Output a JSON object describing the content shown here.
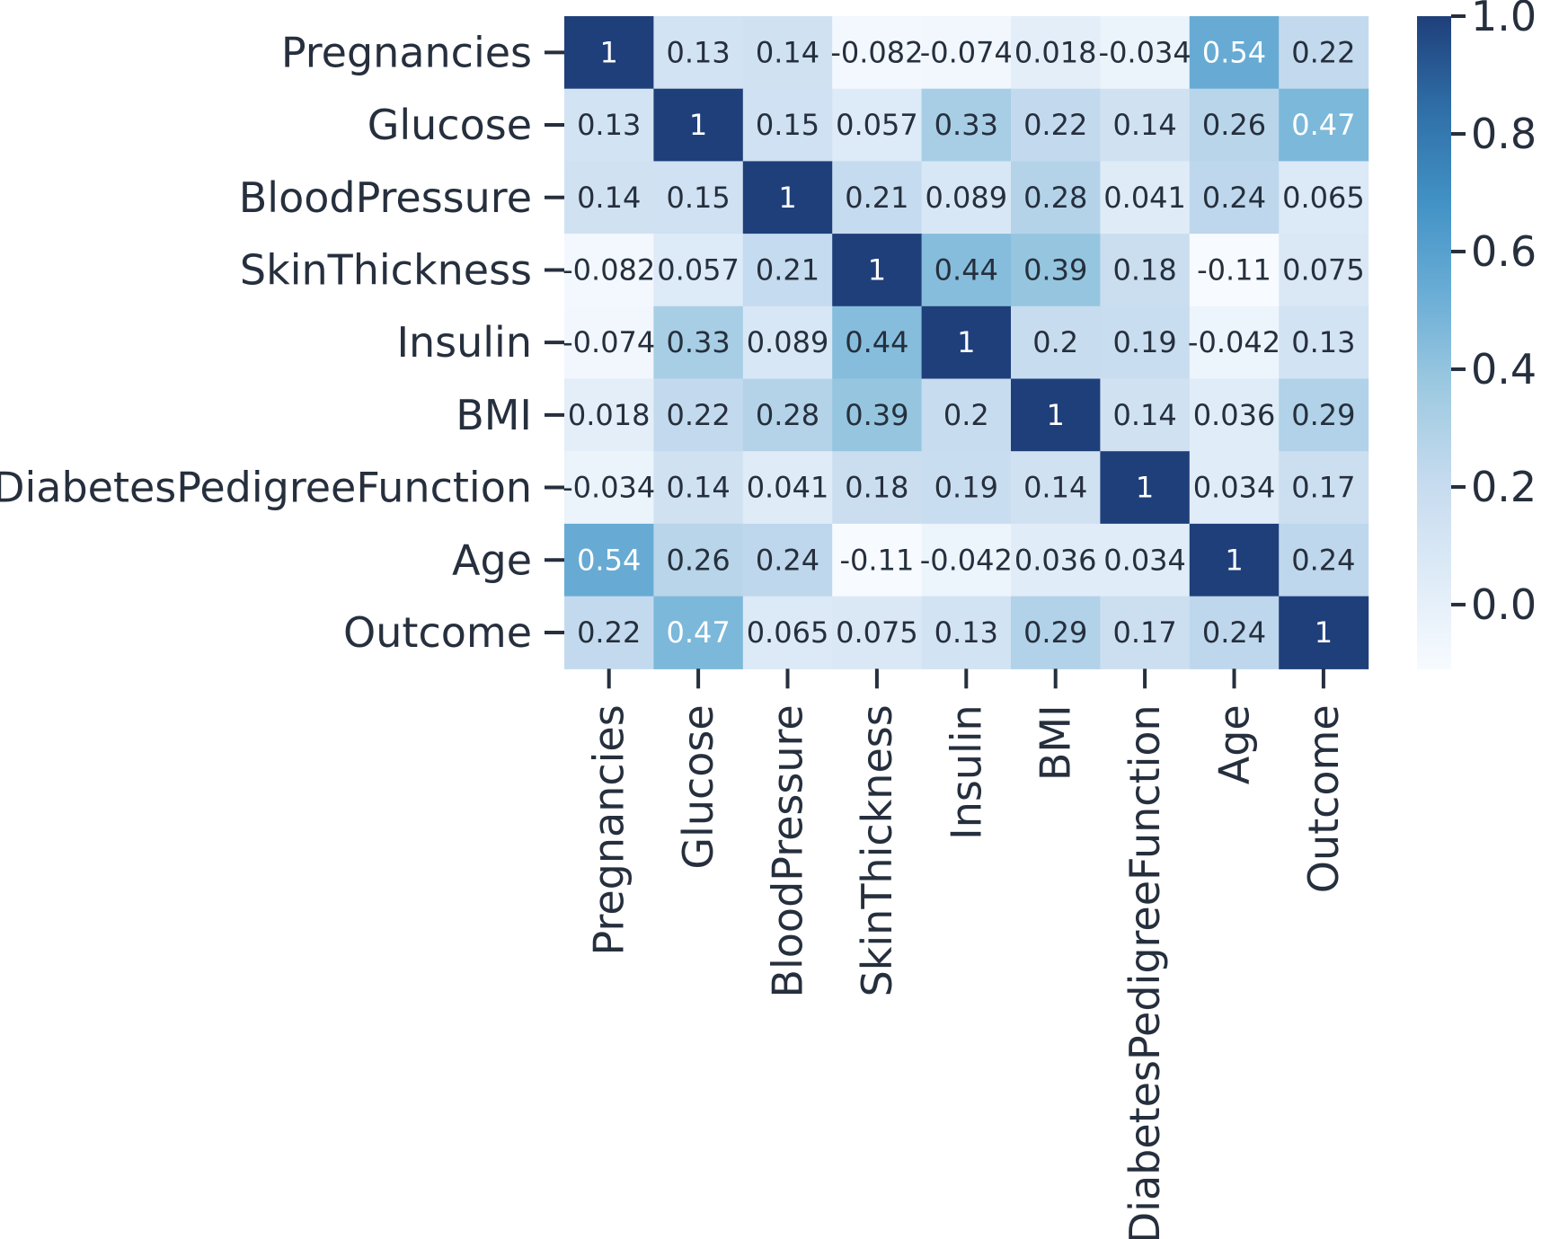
{
  "chart_data": {
    "type": "heatmap",
    "title": "",
    "xlabel": "",
    "ylabel": "",
    "rows": [
      "Pregnancies",
      "Glucose",
      "BloodPressure",
      "SkinThickness",
      "Insulin",
      "BMI",
      "DiabetesPedigreeFunction",
      "Age",
      "Outcome"
    ],
    "columns": [
      "Pregnancies",
      "Glucose",
      "BloodPressure",
      "SkinThickness",
      "Insulin",
      "BMI",
      "DiabetesPedigreeFunction",
      "Age",
      "Outcome"
    ],
    "values": [
      [
        1,
        0.13,
        0.14,
        -0.082,
        -0.074,
        0.018,
        -0.034,
        0.54,
        0.22
      ],
      [
        0.13,
        1,
        0.15,
        0.057,
        0.33,
        0.22,
        0.14,
        0.26,
        0.47
      ],
      [
        0.14,
        0.15,
        1,
        0.21,
        0.089,
        0.28,
        0.041,
        0.24,
        0.065
      ],
      [
        -0.082,
        0.057,
        0.21,
        1,
        0.44,
        0.39,
        0.18,
        -0.11,
        0.075
      ],
      [
        -0.074,
        0.33,
        0.089,
        0.44,
        1,
        0.2,
        0.19,
        -0.042,
        0.13
      ],
      [
        0.018,
        0.22,
        0.28,
        0.39,
        0.2,
        1,
        0.14,
        0.036,
        0.29
      ],
      [
        -0.034,
        0.14,
        0.041,
        0.18,
        0.19,
        0.14,
        1,
        0.034,
        0.17
      ],
      [
        0.54,
        0.26,
        0.24,
        -0.11,
        -0.042,
        0.036,
        0.034,
        1,
        0.24
      ],
      [
        0.22,
        0.47,
        0.065,
        0.075,
        0.13,
        0.29,
        0.17,
        0.24,
        1
      ]
    ],
    "annotations": [
      [
        "1",
        "0.13",
        "0.14",
        "-0.082",
        "-0.074",
        "0.018",
        "-0.034",
        "0.54",
        "0.22"
      ],
      [
        "0.13",
        "1",
        "0.15",
        "0.057",
        "0.33",
        "0.22",
        "0.14",
        "0.26",
        "0.47"
      ],
      [
        "0.14",
        "0.15",
        "1",
        "0.21",
        "0.089",
        "0.28",
        "0.041",
        "0.24",
        "0.065"
      ],
      [
        "-0.082",
        "0.057",
        "0.21",
        "1",
        "0.44",
        "0.39",
        "0.18",
        "-0.11",
        "0.075"
      ],
      [
        "-0.074",
        "0.33",
        "0.089",
        "0.44",
        "1",
        "0.2",
        "0.19",
        "-0.042",
        "0.13"
      ],
      [
        "0.018",
        "0.22",
        "0.28",
        "0.39",
        "0.2",
        "1",
        "0.14",
        "0.036",
        "0.29"
      ],
      [
        "-0.034",
        "0.14",
        "0.041",
        "0.18",
        "0.19",
        "0.14",
        "1",
        "0.034",
        "0.17"
      ],
      [
        "0.54",
        "0.26",
        "0.24",
        "-0.11",
        "-0.042",
        "0.036",
        "0.034",
        "1",
        "0.24"
      ],
      [
        "0.22",
        "0.47",
        "0.065",
        "0.075",
        "0.13",
        "0.29",
        "0.17",
        "0.24",
        "1"
      ]
    ],
    "colorbar": {
      "range": [
        -0.11,
        1.0
      ],
      "ticks": [
        0.0,
        0.2,
        0.4,
        0.6,
        0.8,
        1.0
      ],
      "tick_labels": [
        "0.0",
        "0.2",
        "0.4",
        "0.6",
        "0.8",
        "1.0"
      ],
      "colormap": "Blues",
      "color_stops": [
        "#f7fbff",
        "#deebf7",
        "#c6dbef",
        "#9ecae1",
        "#6baed6",
        "#4292c6",
        "#2f6fa8",
        "#1f3f7a"
      ],
      "placement": "right"
    },
    "grid": false
  }
}
